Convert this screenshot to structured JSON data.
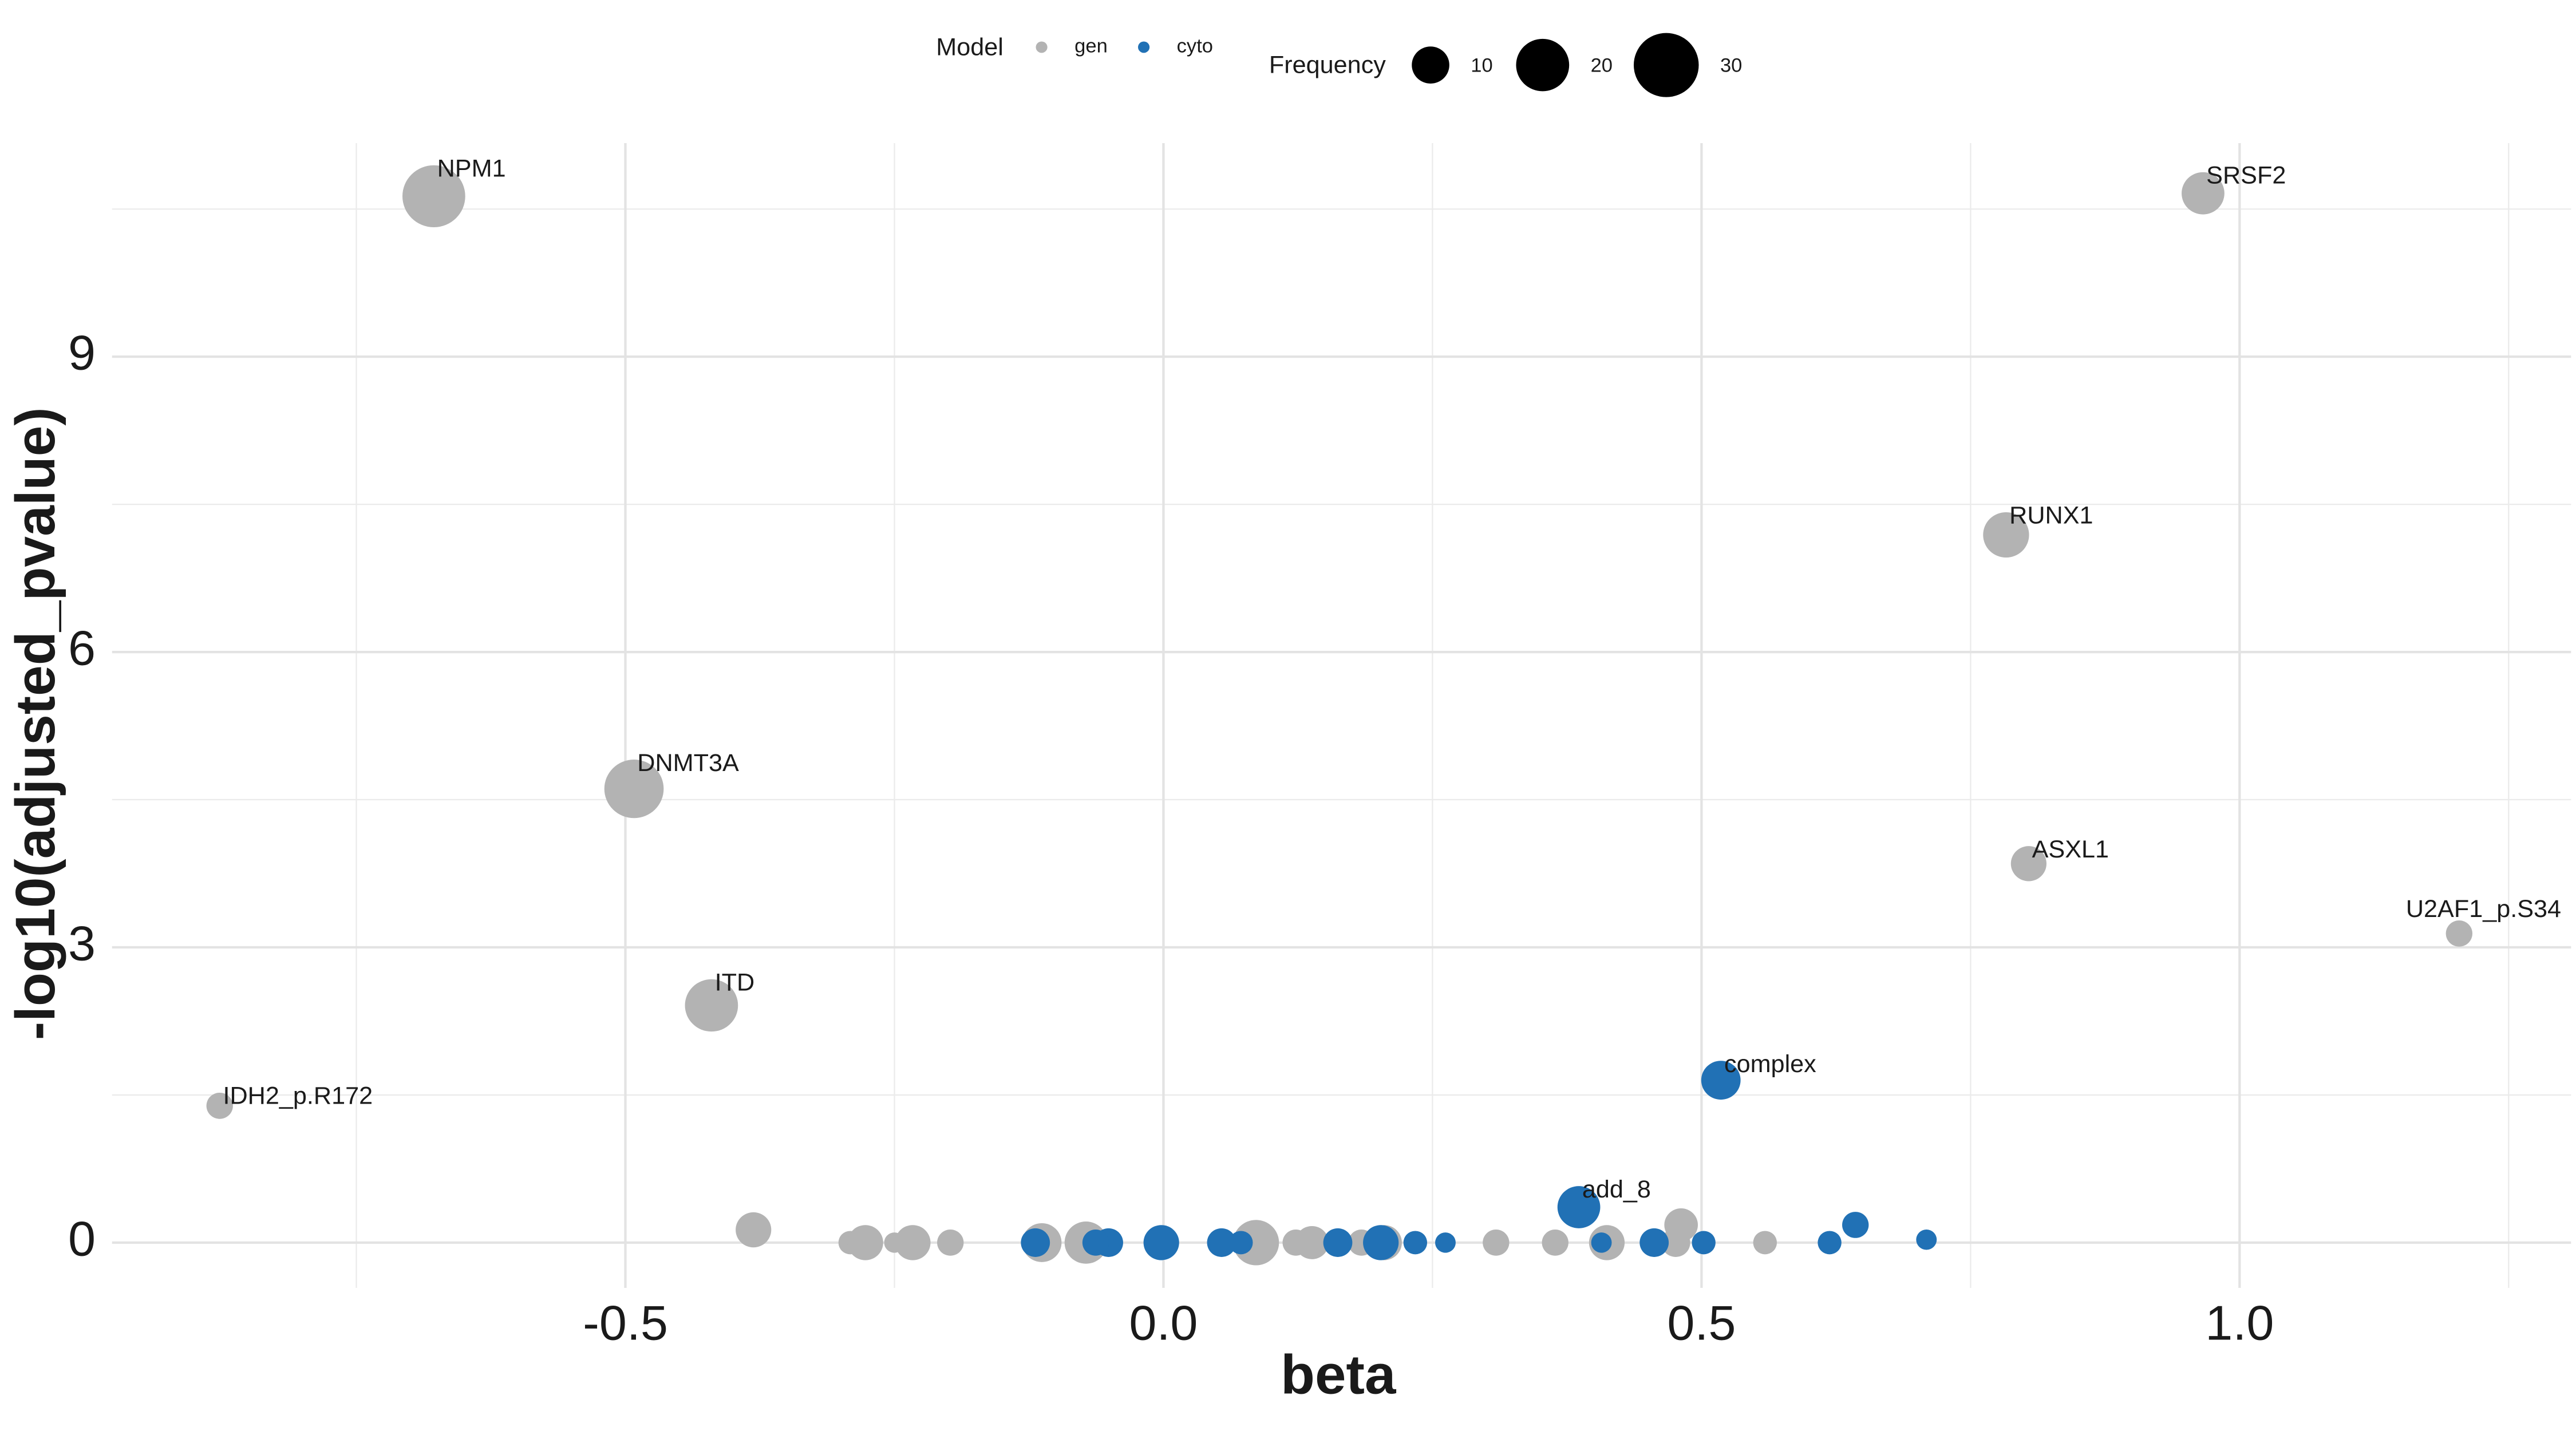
{
  "chart_data": {
    "type": "scatter",
    "x_label": "beta",
    "y_label": "-log10(adjusted_pvalue)",
    "xlim": [
      -0.977,
      1.308
    ],
    "ylim": [
      -0.46,
      11.17
    ],
    "xticks": [
      -0.5,
      {
        "value": 0,
        "label": "0.0"
      },
      0.5,
      {
        "value": 1,
        "label": "1.0"
      }
    ],
    "yticks": [
      0,
      3,
      6,
      9
    ],
    "x_minor_grid": [
      -0.75,
      -0.25,
      0.25,
      0.75,
      1.25
    ],
    "y_minor_grid": [
      1.5,
      4.5,
      7.5,
      10.5
    ],
    "grid": true,
    "legend_position": "top",
    "color_legend_title": "Model",
    "size_legend_title": "Frequency",
    "size_legend": [
      10,
      20,
      30
    ],
    "series": [
      {
        "name": "gen",
        "color": "#b3b3b3",
        "x": [
          -0.678,
          0.966,
          0.783,
          -0.492,
          0.804,
          1.204,
          -0.42,
          -0.877,
          -0.381,
          -0.291,
          -0.277,
          -0.25,
          -0.233,
          -0.198,
          -0.113,
          -0.072,
          0.086,
          0.123,
          0.138,
          0.184,
          0.205,
          0.309,
          0.364,
          0.412,
          0.476,
          0.481,
          0.559
        ],
        "y": [
          10.63,
          10.66,
          7.19,
          4.61,
          3.85,
          3.14,
          2.41,
          1.39,
          0.13,
          0,
          0,
          0,
          0,
          0,
          0,
          0,
          0,
          0,
          0,
          0,
          0,
          0,
          0,
          0,
          0,
          0.18,
          0
        ],
        "size": [
          28,
          13,
          15,
          25,
          9,
          5,
          20,
          5,
          9,
          4,
          9,
          3,
          9,
          5,
          11,
          13,
          15,
          5,
          8,
          5,
          9,
          5,
          5,
          9,
          6,
          8,
          4
        ],
        "labels": [
          "NPM1",
          "SRSF2",
          "RUNX1",
          "DNMT3A",
          "ASXL1",
          "U2AF1_p.S34",
          "ITD",
          "IDH2_p.R172",
          null,
          null,
          null,
          null,
          null,
          null,
          null,
          null,
          null,
          null,
          null,
          null,
          null,
          null,
          null,
          null,
          null,
          null,
          null
        ]
      },
      {
        "name": "cyto",
        "color": "#2171b5",
        "x": [
          0.386,
          0.518,
          0.643,
          0.709,
          0.619,
          0.502,
          0.456,
          0.407,
          0.262,
          0.234,
          0.202,
          0.162,
          0.072,
          0.054,
          -0.002,
          -0.051,
          -0.063,
          -0.119
        ],
        "y": [
          0.36,
          1.65,
          0.18,
          0.03,
          0,
          0,
          0,
          0,
          0,
          0,
          0,
          0,
          0,
          0,
          0,
          0,
          0,
          0
        ],
        "size": [
          13,
          11,
          5,
          3,
          4,
          4,
          6,
          3,
          3,
          4,
          9,
          6,
          4,
          6,
          9,
          6,
          5,
          6
        ],
        "labels": [
          "add_8",
          "complex",
          null,
          null,
          null,
          null,
          null,
          null,
          null,
          null,
          null,
          null,
          null,
          null,
          null,
          null,
          null,
          null
        ]
      }
    ]
  }
}
